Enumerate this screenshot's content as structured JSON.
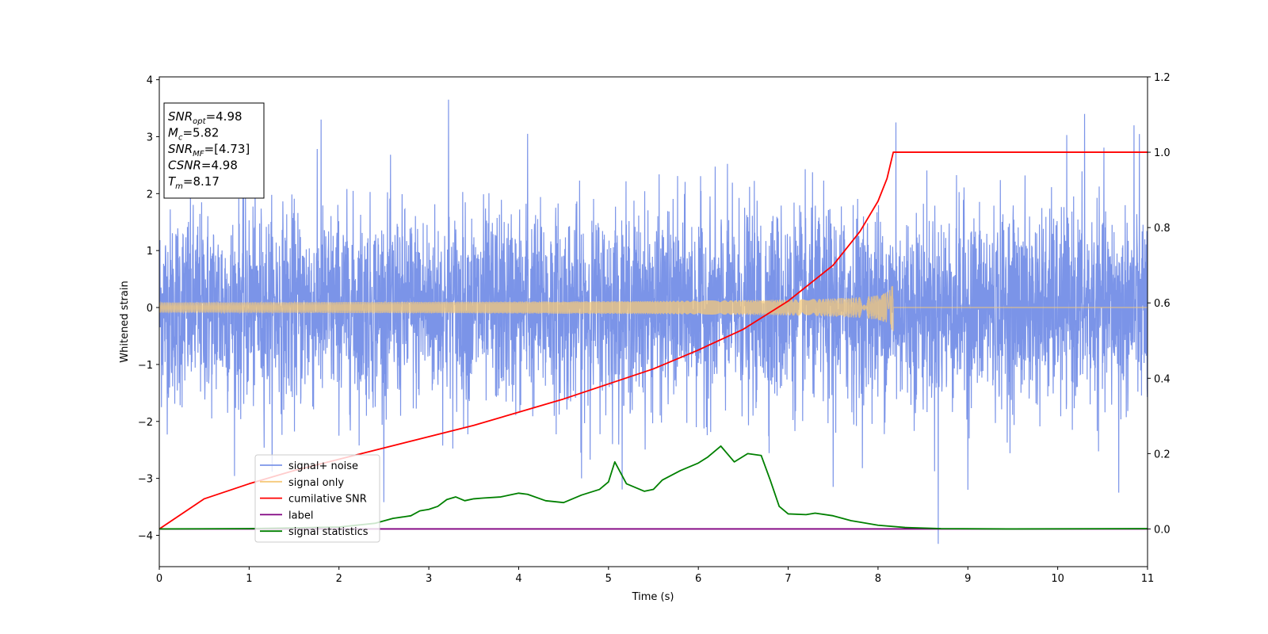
{
  "chart_data": {
    "type": "line",
    "xlabel": "Time (s)",
    "ylabel": "Whitened strain",
    "xlim": [
      0,
      11
    ],
    "ylim_left": [
      -4.55,
      4.05
    ],
    "ylim_right": [
      -0.1,
      1.2
    ],
    "x_ticks": [
      0,
      1,
      2,
      3,
      4,
      5,
      6,
      7,
      8,
      9,
      10,
      11
    ],
    "y_ticks_left": [
      4,
      3,
      2,
      1,
      0,
      -1,
      -2,
      -3,
      -4
    ],
    "y_tick_labels_left": [
      "4",
      "3",
      "2",
      "1",
      "0",
      "−1",
      "−2",
      "−3",
      "−4"
    ],
    "y_ticks_right": [
      1.2,
      1.0,
      0.8,
      0.6,
      0.4,
      0.2,
      0.0
    ],
    "y_tick_labels_right": [
      "1.2",
      "1.0",
      "0.8",
      "0.6",
      "0.4",
      "0.2",
      "0.0"
    ],
    "stats_box": [
      {
        "base": "SNR",
        "sub": "opt",
        "value": "=4.98"
      },
      {
        "base": "M",
        "sub": "c",
        "value": "=5.82"
      },
      {
        "base": "SNR",
        "sub": "MF",
        "value": "=[4.73]"
      },
      {
        "base": "CSNR",
        "sub": "",
        "value": "=4.98"
      },
      {
        "base": "T",
        "sub": "m",
        "value": "=8.17"
      }
    ],
    "series": [
      {
        "name": "signal+ noise",
        "axis": "left",
        "color": "#7b94e8",
        "kind": "noise",
        "noise_std": 0.85,
        "spike_peaks": [
          [
            1.8,
            3.3
          ],
          [
            3.22,
            3.65
          ],
          [
            4.1,
            3.05
          ],
          [
            8.2,
            3.25
          ],
          [
            9.0,
            3.25
          ],
          [
            10.3,
            3.4
          ],
          [
            10.85,
            3.2
          ],
          [
            8.67,
            -4.15
          ],
          [
            10.68,
            -3.25
          ],
          [
            9.0,
            -3.2
          ],
          [
            7.5,
            -3.15
          ],
          [
            4.7,
            -3.0
          ]
        ]
      },
      {
        "name": "signal only",
        "axis": "left",
        "color": "#f5c97a",
        "kind": "chirp",
        "merger_time": 8.17,
        "peak_amplitude": 0.6
      },
      {
        "name": "cumilative SNR",
        "axis": "right",
        "color": "#ff0000",
        "x": [
          0,
          0.5,
          1,
          1.5,
          2,
          2.5,
          3,
          3.5,
          4,
          4.5,
          5,
          5.5,
          6,
          6.5,
          7,
          7.5,
          7.8,
          8.0,
          8.1,
          8.17,
          11
        ],
        "y": [
          0.0,
          0.08,
          0.12,
          0.155,
          0.185,
          0.215,
          0.245,
          0.275,
          0.31,
          0.345,
          0.385,
          0.425,
          0.475,
          0.53,
          0.605,
          0.7,
          0.79,
          0.87,
          0.93,
          1.0,
          1.0
        ]
      },
      {
        "name": "label",
        "axis": "right",
        "color": "#800080",
        "x": [
          0,
          11
        ],
        "y": [
          0,
          0
        ]
      },
      {
        "name": "signal statistics",
        "axis": "right",
        "color": "#008000",
        "x": [
          0,
          1,
          2,
          2.4,
          2.6,
          2.8,
          2.9,
          3.0,
          3.1,
          3.2,
          3.3,
          3.4,
          3.5,
          3.6,
          3.8,
          3.9,
          4.0,
          4.1,
          4.3,
          4.5,
          4.7,
          4.9,
          5.0,
          5.07,
          5.2,
          5.4,
          5.5,
          5.6,
          5.8,
          6.0,
          6.1,
          6.25,
          6.4,
          6.55,
          6.7,
          6.8,
          6.9,
          7.0,
          7.2,
          7.3,
          7.5,
          7.7,
          7.8,
          8.0,
          8.3,
          8.7,
          9.5,
          11
        ],
        "y": [
          0.0,
          0.001,
          0.005,
          0.015,
          0.028,
          0.035,
          0.048,
          0.052,
          0.06,
          0.078,
          0.085,
          0.075,
          0.08,
          0.082,
          0.085,
          0.09,
          0.095,
          0.092,
          0.075,
          0.07,
          0.09,
          0.105,
          0.125,
          0.178,
          0.12,
          0.1,
          0.105,
          0.13,
          0.155,
          0.175,
          0.19,
          0.22,
          0.178,
          0.2,
          0.195,
          0.13,
          0.06,
          0.04,
          0.038,
          0.042,
          0.035,
          0.022,
          0.018,
          0.01,
          0.004,
          0.001,
          0.0,
          0.001
        ]
      }
    ],
    "legend": {
      "placement": "lower-left",
      "entries": [
        "signal+ noise",
        "signal only",
        "cumilative SNR",
        "label",
        "signal statistics"
      ]
    }
  }
}
